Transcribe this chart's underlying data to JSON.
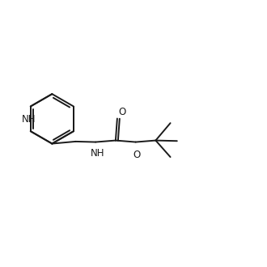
{
  "background_color": "#ffffff",
  "line_color": "#1a1a1a",
  "line_width": 1.4,
  "font_size": 8.5,
  "figsize": [
    3.3,
    3.3
  ],
  "dpi": 100,
  "xlim": [
    0,
    10
  ],
  "ylim": [
    0,
    10
  ]
}
